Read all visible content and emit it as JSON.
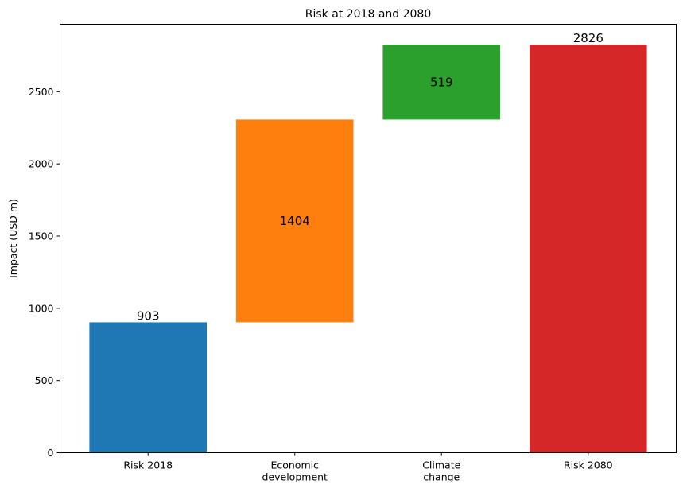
{
  "chart_data": {
    "type": "waterfall",
    "title": "Risk at 2018 and 2080",
    "xlabel": "",
    "ylabel": "Impact (USD m)",
    "ylim": [
      0,
      2967
    ],
    "yticks": [
      0,
      500,
      1000,
      1500,
      2000,
      2500
    ],
    "grid": false,
    "bars": [
      {
        "category": [
          "Risk 2018"
        ],
        "bottom": 0,
        "value": 903,
        "label": "903",
        "label_position": "top",
        "color": "#1f77b4"
      },
      {
        "category": [
          "Economic",
          "development"
        ],
        "bottom": 903,
        "value": 1404,
        "label": "1404",
        "label_position": "center",
        "color": "#ff7f0e"
      },
      {
        "category": [
          "Climate",
          "change"
        ],
        "bottom": 2307,
        "value": 519,
        "label": "519",
        "label_position": "center",
        "color": "#2ca02c"
      },
      {
        "category": [
          "Risk 2080"
        ],
        "bottom": 0,
        "value": 2826,
        "label": "2826",
        "label_position": "top",
        "color": "#d62728"
      }
    ]
  }
}
